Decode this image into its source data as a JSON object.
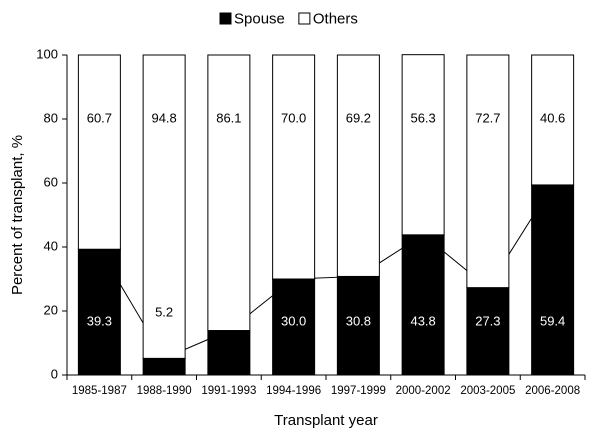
{
  "chart_data": {
    "type": "stacked_bar",
    "xlabel": "Transplant year",
    "ylabel": "Percent of transplant, %",
    "categories": [
      "1985-1987",
      "1988-1990",
      "1991-1993",
      "1994-1996",
      "1997-1999",
      "2000-2002",
      "2003-2005",
      "2006-2008"
    ],
    "series": [
      {
        "name": "Spouse",
        "color": "#000000",
        "values": [
          39.3,
          5.2,
          13.9,
          30.0,
          30.8,
          43.8,
          27.3,
          59.4
        ],
        "value_labels": [
          "39.3",
          "5.2",
          "13.9",
          "30.0",
          "30.8",
          "43.8",
          "27.3",
          "59.4"
        ]
      },
      {
        "name": "Others",
        "color": "#ffffff",
        "values": [
          60.7,
          94.8,
          86.1,
          70.0,
          69.2,
          56.3,
          72.7,
          40.6
        ],
        "value_labels": [
          "60.7",
          "94.8",
          "86.1",
          "70.0",
          "69.2",
          "56.3",
          "72.7",
          "40.6"
        ]
      }
    ],
    "ylim": [
      0,
      100
    ],
    "yticks": [
      0,
      20,
      40,
      60,
      80,
      100
    ],
    "legend": "top"
  }
}
